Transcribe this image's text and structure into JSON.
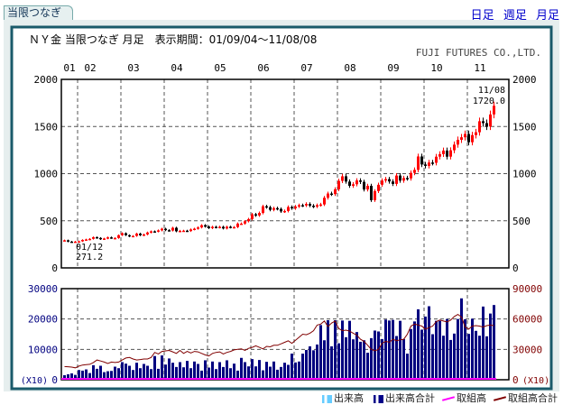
{
  "tab_label": "当限つなぎ",
  "links": [
    "日足",
    "週足",
    "月足"
  ],
  "colors": {
    "up": "#ff0000",
    "down": "#000000",
    "volume": "#000080",
    "oi_total": "#800000",
    "oi": "#ff00ff",
    "volume_light": "#66ccff",
    "frame": "#1a5a6a"
  },
  "chart_data": {
    "type": "candlestick+bar+line",
    "title": "ＮＹ金 当限つなぎ 月足　表示期間：01/09/04～11/08/08",
    "company": "FUJI FUTURES CO.,LTD.",
    "year_labels": [
      "01",
      "02",
      "03",
      "04",
      "05",
      "06",
      "07",
      "08",
      "09",
      "10",
      "11"
    ],
    "price_axis": {
      "ticks": [
        "2000",
        "1500",
        "1000",
        "500",
        "0"
      ],
      "ylim": [
        0,
        2000
      ]
    },
    "volume_axis_left": {
      "ticks": [
        "30000",
        "20000",
        "10000",
        "0"
      ],
      "ylim": [
        0,
        30000
      ],
      "unit": "(X10)"
    },
    "volume_axis_right": {
      "ticks": [
        "90000",
        "60000",
        "30000",
        "0"
      ],
      "ylim": [
        0,
        90000
      ],
      "unit": "(X10)"
    },
    "first_annotation": {
      "date": "01/12",
      "value": "271.2"
    },
    "last_annotation": {
      "date": "11/08",
      "value": "1720.0"
    },
    "start_month": "2001-09",
    "closes": [
      293,
      279,
      275,
      279,
      282,
      297,
      302,
      308,
      326,
      318,
      304,
      312,
      324,
      317,
      317,
      347,
      368,
      347,
      334,
      339,
      364,
      346,
      355,
      376,
      388,
      386,
      398,
      416,
      400,
      396,
      426,
      388,
      393,
      395,
      391,
      408,
      416,
      429,
      453,
      438,
      422,
      436,
      429,
      436,
      418,
      437,
      430,
      433,
      470,
      470,
      495,
      518,
      569,
      556,
      583,
      654,
      644,
      616,
      634,
      626,
      599,
      604,
      646,
      632,
      651,
      665,
      662,
      679,
      660,
      650,
      666,
      673,
      744,
      789,
      783,
      834,
      923,
      972,
      916,
      871,
      887,
      928,
      913,
      832,
      871,
      718,
      815,
      882,
      927,
      942,
      917,
      891,
      980,
      926,
      954,
      950,
      1008,
      1040,
      1182,
      1097,
      1082,
      1118,
      1115,
      1180,
      1207,
      1245,
      1180,
      1248,
      1308,
      1359,
      1386,
      1421,
      1333,
      1409,
      1439,
      1556,
      1536,
      1500,
      1628,
      1720
    ],
    "volume_total": [
      1500,
      1800,
      2100,
      1600,
      3200,
      3000,
      3400,
      2200,
      4800,
      3600,
      4600,
      2500,
      2800,
      2900,
      4300,
      3800,
      5800,
      5300,
      4600,
      3200,
      5600,
      3800,
      5200,
      4600,
      3500,
      7800,
      3600,
      8000,
      5000,
      7000,
      5600,
      4200,
      5800,
      4100,
      6200,
      3800,
      6000,
      5200,
      3000,
      6400,
      4000,
      6000,
      3500,
      5800,
      4200,
      6400,
      3800,
      5300,
      3000,
      7200,
      5800,
      4400,
      6800,
      4400,
      6500,
      3100,
      5900,
      4300,
      6000,
      3300,
      4200,
      5600,
      4900,
      8600,
      5700,
      6000,
      8600,
      9800,
      11000,
      9700,
      11600,
      18000,
      13000,
      19600,
      11000,
      19600,
      12000,
      19500,
      14000,
      19400,
      13300,
      15700,
      12500,
      13000,
      8900,
      13700,
      16200,
      15900,
      13400,
      19800,
      19500,
      19700,
      14400,
      19400,
      13400,
      8600,
      16700,
      19200,
      23200,
      16500,
      20800,
      24200,
      15000,
      19400,
      19400,
      14500,
      20000,
      13100,
      15200,
      20000,
      26800,
      19900,
      15100,
      20100,
      16100,
      14500,
      24100,
      14300,
      21800,
      24600
    ],
    "oi_total": [
      13000,
      12800,
      12500,
      11800,
      13500,
      14500,
      15000,
      15200,
      17000,
      19500,
      18500,
      17500,
      16000,
      17500,
      17000,
      17500,
      19500,
      21500,
      22000,
      20500,
      19500,
      20000,
      20500,
      20500,
      22000,
      27000,
      25500,
      28000,
      28500,
      29000,
      27500,
      26000,
      29000,
      26000,
      28000,
      26500,
      28000,
      27500,
      26000,
      24500,
      23500,
      26000,
      27000,
      27500,
      25500,
      27000,
      28000,
      29500,
      30000,
      30500,
      29000,
      31000,
      32000,
      33500,
      32000,
      30500,
      33000,
      32500,
      34000,
      34000,
      35500,
      37000,
      38500,
      36000,
      39000,
      42000,
      45000,
      44500,
      46000,
      48500,
      54000,
      55000,
      58000,
      52500,
      56000,
      58000,
      50500,
      48500,
      49000,
      48000,
      46000,
      44000,
      40000,
      38000,
      34000,
      30000,
      28500,
      30000,
      36000,
      38000,
      37000,
      40000,
      38500,
      39500,
      40000,
      45000,
      53000,
      55000,
      54000,
      53000,
      50000,
      51500,
      53000,
      57500,
      59000,
      58000,
      57000,
      59000,
      62500,
      64500,
      62000,
      52000,
      50000,
      53000,
      53500,
      53000,
      52000,
      53500,
      54000,
      53500
    ],
    "legend": [
      "出来高",
      "出来高合計",
      "取組高",
      "取組高合計"
    ]
  }
}
